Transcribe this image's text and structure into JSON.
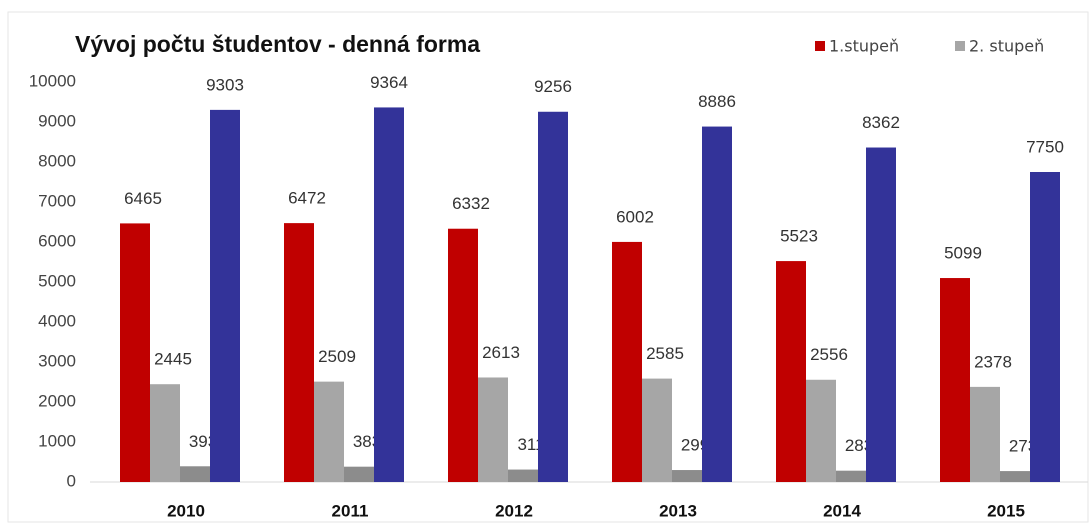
{
  "chart_data": {
    "type": "bar",
    "title": "Vývoj počtu študentov - denná forma",
    "categories": [
      "2010",
      "2011",
      "2012",
      "2013",
      "2014",
      "2015"
    ],
    "series": [
      {
        "name": "1.stupeň",
        "color": "#c00000",
        "values": [
          6465,
          6472,
          6332,
          6002,
          5523,
          5099
        ]
      },
      {
        "name": "2. stupeň",
        "color": "#a6a6a6",
        "values": [
          2445,
          2509,
          2613,
          2585,
          2556,
          2378
        ]
      },
      {
        "color": "#8c8c8c",
        "values": [
          393,
          383,
          311,
          299,
          283,
          273
        ]
      },
      {
        "color": "#333399",
        "values": [
          9303,
          9364,
          9256,
          8886,
          8362,
          7750
        ]
      }
    ],
    "ylim": [
      0,
      10000
    ],
    "yticks": [
      0,
      1000,
      2000,
      3000,
      4000,
      5000,
      6000,
      7000,
      8000,
      9000,
      10000
    ],
    "grid": false,
    "legend": "top-right"
  }
}
